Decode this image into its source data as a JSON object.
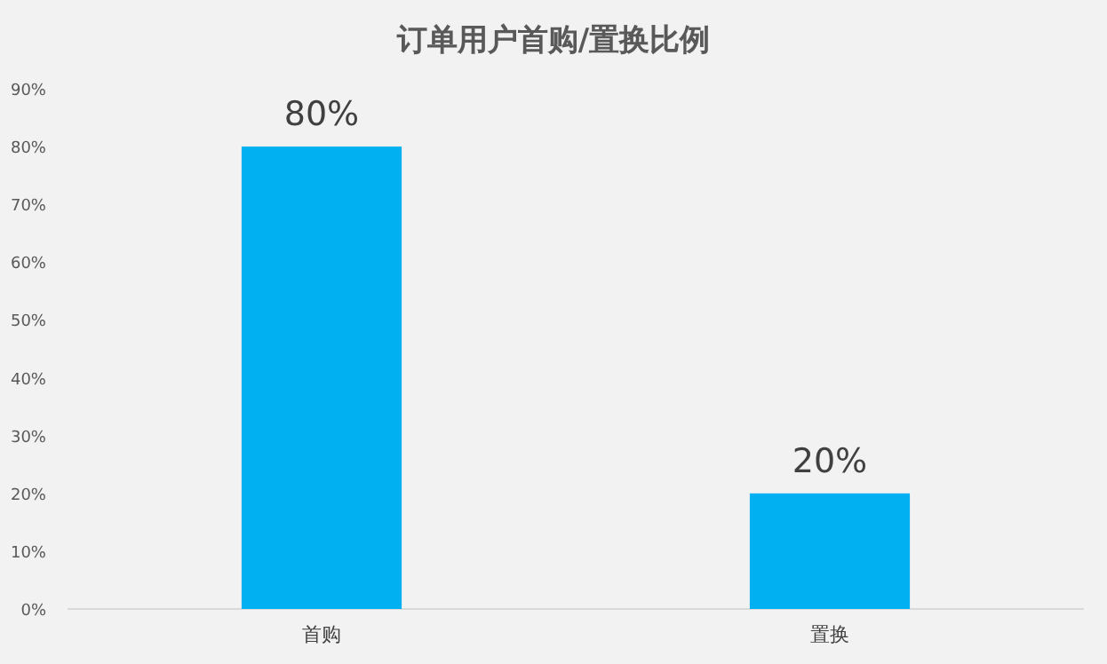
{
  "chart_data": {
    "type": "bar",
    "title": "订单用户首购/置换比例",
    "categories": [
      "首购",
      "置换"
    ],
    "values": [
      80,
      20
    ],
    "value_labels": [
      "80%",
      "20%"
    ],
    "color": "#00b0f0",
    "ylim": [
      0,
      90
    ],
    "yticks": [
      {
        "value": 0,
        "label": "0%"
      },
      {
        "value": 10,
        "label": "10%"
      },
      {
        "value": 20,
        "label": "20%"
      },
      {
        "value": 30,
        "label": "30%"
      },
      {
        "value": 40,
        "label": "40%"
      },
      {
        "value": 50,
        "label": "50%"
      },
      {
        "value": 60,
        "label": "60%"
      },
      {
        "value": 70,
        "label": "70%"
      },
      {
        "value": 80,
        "label": "80%"
      },
      {
        "value": 90,
        "label": "90%"
      }
    ]
  }
}
